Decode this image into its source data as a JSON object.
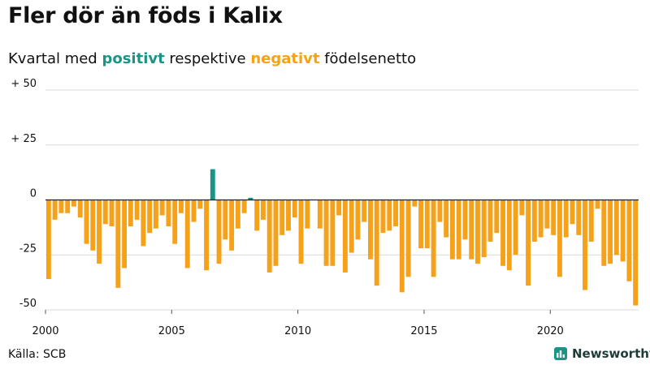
{
  "title": "Fler dör än föds i Kalix",
  "subtitle": {
    "prefix": "Kvartal med ",
    "positive_word": "positivt",
    "middle": " respektive ",
    "negative_word": "negativt",
    "suffix": " födelsenetto"
  },
  "source": "Källa: SCB",
  "brand": {
    "name": "Newsworthy",
    "icon": "newsworthy-bars-icon"
  },
  "colors": {
    "positive": "#1a9585",
    "negative": "#f5a21a",
    "brand": "#1a9585",
    "text": "#111111"
  },
  "chart_data": {
    "type": "bar",
    "title": "Fler dör än föds i Kalix",
    "subtitle": "Kvartal med positivt respektive negativt födelsenetto",
    "xlabel": "",
    "ylabel": "",
    "ylim": [
      -50,
      50
    ],
    "y_ticks": [
      {
        "value": 50,
        "label": "+ 50"
      },
      {
        "value": 25,
        "label": "+ 25"
      },
      {
        "value": 0,
        "label": "0"
      },
      {
        "value": -25,
        "label": "-25"
      },
      {
        "value": -50,
        "label": "-50"
      }
    ],
    "x_tick_labels": [
      "2000",
      "2005",
      "2010",
      "2015",
      "2020"
    ],
    "x_tick_years": [
      2000,
      2005,
      2010,
      2015,
      2020
    ],
    "grid": "horizontal",
    "start": "2000 Q1",
    "frequency": "quarterly",
    "series": [
      {
        "values": [
          -36,
          -9,
          -6,
          -6,
          -3,
          -8,
          -20,
          -23,
          -29,
          -11,
          -12,
          -40,
          -31,
          -12,
          -9,
          -21,
          -15,
          -13,
          -7,
          -12,
          -20,
          -6,
          -31,
          -10,
          -4,
          -32,
          14,
          -29,
          -18,
          -23,
          -13,
          -6,
          1,
          -14,
          -9,
          -33,
          -30,
          -16,
          -14,
          -8,
          -29,
          -13,
          0,
          -13,
          -30,
          -30,
          -7,
          -33,
          -24,
          -18,
          -10,
          -27,
          -39,
          -15,
          -14,
          -12,
          -42,
          -35,
          -3,
          -22,
          -22,
          -35,
          -10,
          -17,
          -27,
          -27,
          -18,
          -27,
          -29,
          -26,
          -19,
          -15,
          -30,
          -32,
          -25,
          -7,
          -39,
          -19,
          -17,
          -13,
          -16,
          -35,
          -17,
          -11,
          -16,
          -41,
          -19,
          -4,
          -30,
          -29,
          -25,
          -28,
          -37,
          -48
        ]
      }
    ]
  }
}
